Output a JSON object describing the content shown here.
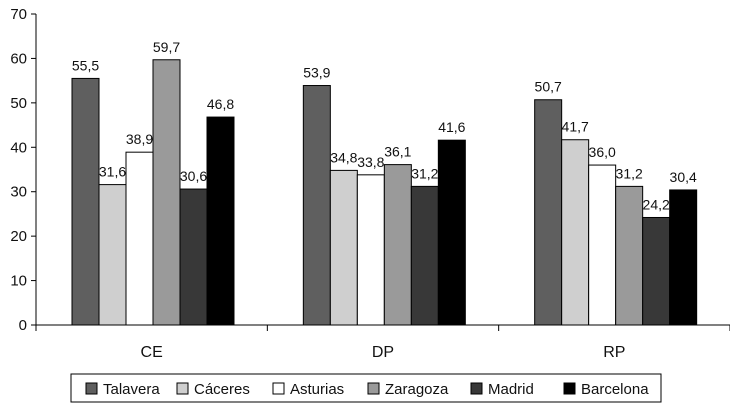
{
  "chart_data": {
    "type": "bar",
    "categories": [
      "CE",
      "DP",
      "RP"
    ],
    "series": [
      {
        "name": "Talavera",
        "color": "#5f5f5f",
        "values": [
          55.5,
          53.9,
          50.7
        ],
        "labels": [
          "55,5",
          "53,9",
          "50,7"
        ]
      },
      {
        "name": "Cáceres",
        "color": "#cfcfcf",
        "values": [
          31.6,
          34.8,
          41.7
        ],
        "labels": [
          "31,6",
          "34,8",
          "41,7"
        ]
      },
      {
        "name": "Asturias",
        "color": "#ffffff",
        "values": [
          38.9,
          33.8,
          36.0
        ],
        "labels": [
          "38,9",
          "33,8",
          "36,0"
        ]
      },
      {
        "name": "Zaragoza",
        "color": "#9a9a9a",
        "values": [
          59.7,
          36.1,
          31.2
        ],
        "labels": [
          "59,7",
          "36,1",
          "31,2"
        ]
      },
      {
        "name": "Madrid",
        "color": "#383838",
        "values": [
          30.6,
          31.2,
          24.2
        ],
        "labels": [
          "30,6",
          "31,2",
          "24,2"
        ]
      },
      {
        "name": "Barcelona",
        "color": "#000000",
        "values": [
          46.8,
          41.6,
          30.4
        ],
        "labels": [
          "46,8",
          "41,6",
          "30,4"
        ]
      }
    ],
    "ylim": [
      0,
      70
    ],
    "yticks": [
      0,
      10,
      20,
      30,
      40,
      50,
      60,
      70
    ],
    "title": "",
    "xlabel": "",
    "ylabel": "",
    "grid": false,
    "legend_position": "bottom"
  }
}
